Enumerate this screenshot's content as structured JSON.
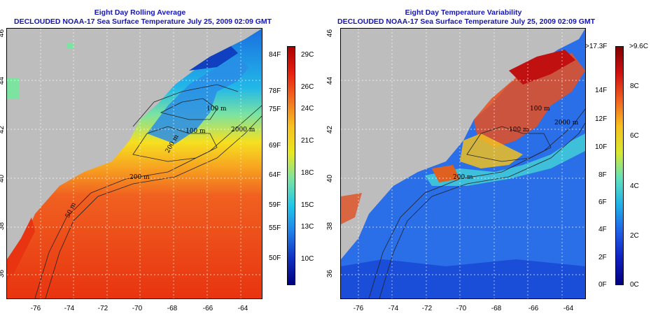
{
  "left": {
    "title1": "Eight Day Rolling Average",
    "title2": "DECLOUDED NOAA-17 Sea Surface Temperature July 25, 2009 02:09 GMT",
    "xticks": [
      "-76",
      "-74",
      "-72",
      "-70",
      "-68",
      "-66",
      "-64"
    ],
    "yticks": [
      "46",
      "44",
      "42",
      "40",
      "38",
      "36"
    ],
    "cbar_f": [
      "84F",
      "78F",
      "75F",
      "69F",
      "64F",
      "59F",
      "55F",
      "50F"
    ],
    "cbar_c": [
      "29C",
      "26C",
      "24C",
      "21C",
      "18C",
      "15C",
      "13C",
      "10C"
    ],
    "contours": [
      "100 m",
      "2000 m",
      "100 m",
      "200 m",
      "200 m",
      "50 m"
    ]
  },
  "right": {
    "title1": "Eight Day Temperature Variability",
    "title2": "DECLOUDED NOAA-17 Sea Surface Temperature July 25, 2009 02:09 GMT",
    "xticks": [
      "-76",
      "-74",
      "-72",
      "-70",
      "-68",
      "-66",
      "-64"
    ],
    "yticks": [
      "46",
      "44",
      "42",
      "40",
      "38",
      "36"
    ],
    "cbar_f": [
      ">17.3F",
      "14F",
      "12F",
      "10F",
      "8F",
      "6F",
      "4F",
      "2F",
      "0F"
    ],
    "cbar_c": [
      ">9.6C",
      "8C",
      "6C",
      "4C",
      "2C",
      "0C"
    ],
    "contours": [
      "100 m",
      "2000 m",
      "100 m",
      "200 m"
    ]
  },
  "colors": {
    "title": "#1414b4",
    "land": "#bdbdbd"
  }
}
